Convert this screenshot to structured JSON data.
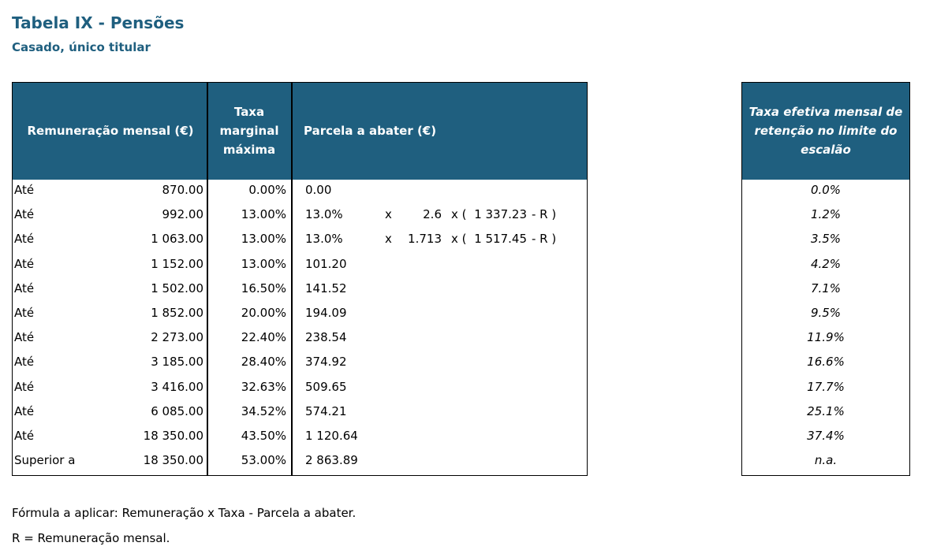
{
  "header": {
    "title": "Tabela IX - Pensões",
    "subtitle": "Casado, único titular"
  },
  "table": {
    "columns": [
      "Remuneração mensal (€)",
      "Taxa marginal máxima",
      "Parcela a abater (€)"
    ],
    "rows": [
      [
        "Até",
        "870.00",
        "0.00%",
        "0.00"
      ],
      [
        "Até",
        "992.00",
        "13.00%",
        "13.0%",
        [
          "x",
          "2.6",
          "x (",
          "1 337.23",
          "- R )"
        ]
      ],
      [
        "Até",
        "1 063.00",
        "13.00%",
        "13.0%",
        [
          "x",
          "1.713",
          "x (",
          "1 517.45",
          "- R )"
        ]
      ],
      [
        "Até",
        "1 152.00",
        "13.00%",
        "101.20"
      ],
      [
        "Até",
        "1 502.00",
        "16.50%",
        "141.52"
      ],
      [
        "Até",
        "1 852.00",
        "20.00%",
        "194.09"
      ],
      [
        "Até",
        "2 273.00",
        "22.40%",
        "238.54"
      ],
      [
        "Até",
        "3 185.00",
        "28.40%",
        "374.92"
      ],
      [
        "Até",
        "3 416.00",
        "32.63%",
        "509.65"
      ],
      [
        "Até",
        "6 085.00",
        "34.52%",
        "574.21"
      ],
      [
        "Até",
        "18 350.00",
        "43.50%",
        "1 120.64"
      ],
      [
        "Superior a",
        "18 350.00",
        "53.00%",
        "2 863.89"
      ]
    ]
  },
  "effective_table": {
    "header": "Taxa efetiva mensal de retenção no limite do escalão",
    "rows": [
      "0.0%",
      "1.2%",
      "3.5%",
      "4.2%",
      "7.1%",
      "9.5%",
      "11.9%",
      "16.6%",
      "17.7%",
      "25.1%",
      "37.4%",
      "n.a."
    ]
  },
  "notes": [
    "Fórmula a aplicar: Remuneração x Taxa - Parcela a abater.",
    "R = Remuneração mensal."
  ]
}
